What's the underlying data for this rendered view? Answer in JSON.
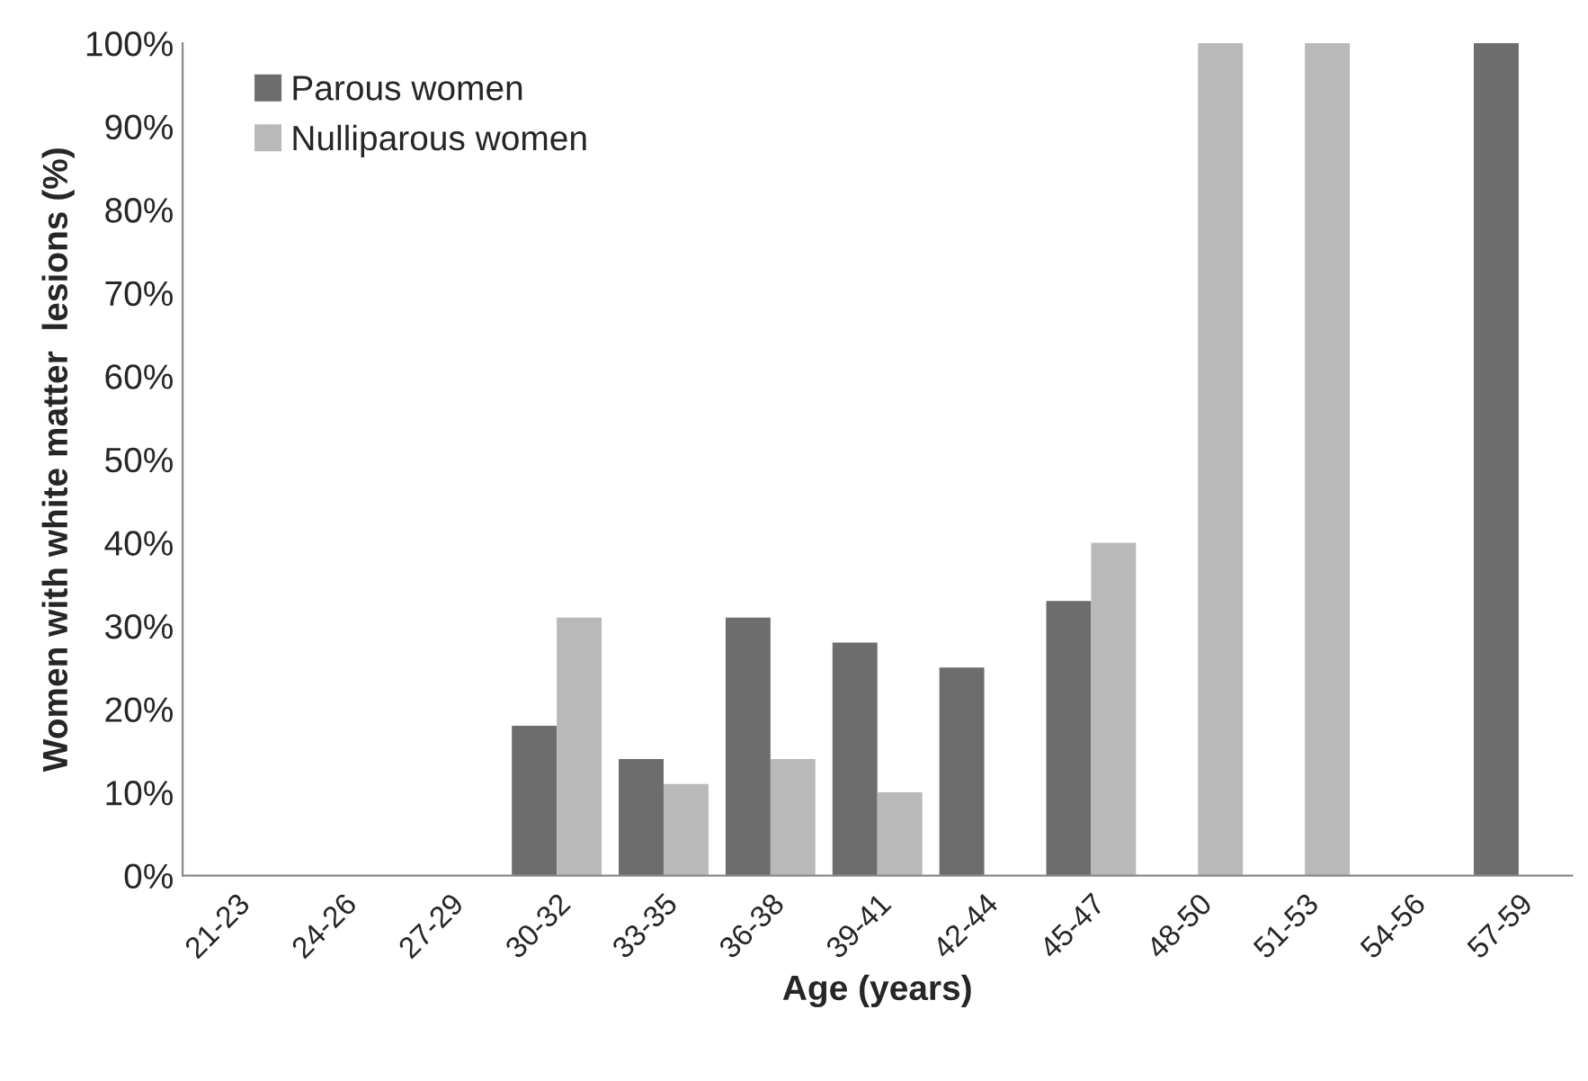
{
  "chart_data": {
    "type": "bar",
    "xlabel": "Age (years)",
    "ylabel": "Women with white matter  lesions (%)",
    "categories": [
      "21-23",
      "24-26",
      "27-29",
      "30-32",
      "33-35",
      "36-38",
      "39-41",
      "42-44",
      "45-47",
      "48-50",
      "51-53",
      "54-56",
      "57-59"
    ],
    "series": [
      {
        "name": "Parous women",
        "color": "#6d6d6d",
        "values": [
          null,
          null,
          null,
          18,
          14,
          31,
          28,
          25,
          33,
          null,
          null,
          null,
          100
        ]
      },
      {
        "name": "Nulliparous women",
        "color": "#b9b9b9",
        "values": [
          null,
          null,
          null,
          31,
          11,
          14,
          10,
          null,
          40,
          100,
          100,
          null,
          null
        ]
      }
    ],
    "ylim": [
      0,
      100
    ],
    "yticks": [
      {
        "value": 0,
        "label": "0%"
      },
      {
        "value": 10,
        "label": "10%"
      },
      {
        "value": 20,
        "label": "20%"
      },
      {
        "value": 30,
        "label": "30%"
      },
      {
        "value": 40,
        "label": "40%"
      },
      {
        "value": 50,
        "label": "50%"
      },
      {
        "value": 60,
        "label": "60%"
      },
      {
        "value": 70,
        "label": "70%"
      },
      {
        "value": 80,
        "label": "80%"
      },
      {
        "value": 90,
        "label": "90%"
      },
      {
        "value": 100,
        "label": "100%"
      }
    ],
    "grid": false,
    "legend": "top left"
  }
}
